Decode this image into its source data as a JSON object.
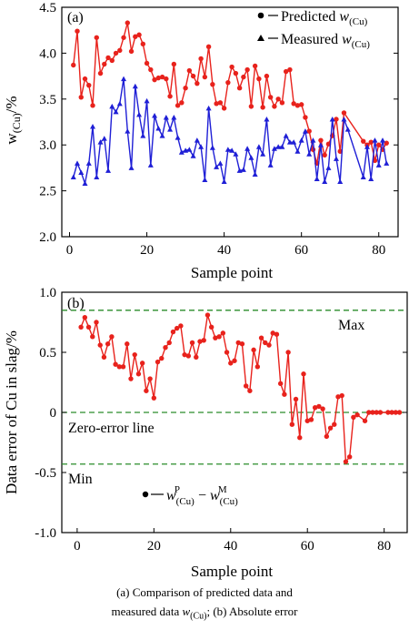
{
  "chart_data": [
    {
      "type": "line",
      "panel_label": "(a)",
      "xlabel": "Sample point",
      "ylabel": "w(Cu)/%",
      "xlim": [
        -2,
        85
      ],
      "ylim": [
        2.0,
        4.5
      ],
      "xticks": [
        "0",
        "20",
        "40",
        "60",
        "80"
      ],
      "yticks": [
        "2.0",
        "2.5",
        "3.0",
        "3.5",
        "4.0",
        "4.5"
      ],
      "legend": {
        "placement": "top-right",
        "entries": [
          "Predicted w(Cu)",
          "Measured w(Cu)"
        ]
      },
      "series": [
        {
          "name": "Predicted w(Cu)",
          "color": "#e8221c",
          "marker": "circle",
          "x": [
            1,
            2,
            3,
            4,
            5,
            6,
            7,
            8,
            9,
            10,
            11,
            12,
            13,
            14,
            15,
            16,
            17,
            18,
            19,
            20,
            21,
            22,
            23,
            24,
            25,
            26,
            27,
            28,
            29,
            30,
            31,
            32,
            33,
            34,
            35,
            36,
            37,
            38,
            39,
            40,
            41,
            42,
            43,
            44,
            45,
            46,
            47,
            48,
            49,
            50,
            51,
            52,
            53,
            54,
            55,
            56,
            57,
            58,
            59,
            60,
            61,
            62,
            63,
            64,
            65,
            66,
            67,
            68,
            69,
            70,
            71,
            76,
            77,
            78,
            79,
            80,
            81,
            82
          ],
          "y": [
            3.87,
            4.24,
            3.52,
            3.72,
            3.65,
            3.43,
            4.17,
            3.78,
            3.88,
            3.95,
            3.92,
            4.0,
            4.03,
            4.17,
            4.33,
            4.02,
            4.18,
            4.2,
            4.1,
            3.89,
            3.82,
            3.71,
            3.73,
            3.74,
            3.72,
            3.53,
            3.88,
            3.43,
            3.46,
            3.62,
            3.81,
            3.75,
            3.67,
            3.94,
            3.74,
            4.07,
            3.66,
            3.45,
            3.46,
            3.4,
            3.68,
            3.85,
            3.78,
            3.62,
            3.74,
            3.82,
            3.42,
            3.86,
            3.72,
            3.41,
            3.75,
            3.52,
            3.42,
            3.5,
            3.46,
            3.8,
            3.82,
            3.45,
            3.43,
            3.44,
            3.3,
            3.15,
            2.95,
            2.8,
            3.05,
            2.89,
            3.01,
            3.1,
            3.28,
            2.93,
            3.35,
            3.04,
            3.0,
            3.03,
            2.83,
            3.0,
            2.95,
            3.02
          ]
        },
        {
          "name": "Measured w(Cu)",
          "color": "#1f1fd6",
          "marker": "triangle",
          "x": [
            1,
            2,
            3,
            4,
            5,
            6,
            7,
            8,
            9,
            10,
            11,
            12,
            13,
            14,
            15,
            16,
            17,
            18,
            19,
            20,
            21,
            22,
            23,
            24,
            25,
            26,
            27,
            28,
            29,
            30,
            31,
            32,
            33,
            34,
            35,
            36,
            37,
            38,
            39,
            40,
            41,
            42,
            43,
            44,
            45,
            46,
            47,
            48,
            49,
            50,
            51,
            52,
            53,
            54,
            55,
            56,
            57,
            58,
            59,
            60,
            61,
            62,
            63,
            64,
            65,
            66,
            67,
            68,
            69,
            70,
            71,
            72,
            76,
            77,
            78,
            79,
            80,
            81,
            82
          ],
          "y": [
            2.65,
            2.8,
            2.7,
            2.58,
            2.8,
            3.2,
            2.65,
            3.03,
            3.07,
            2.72,
            3.42,
            3.36,
            3.45,
            3.72,
            3.15,
            2.75,
            3.64,
            3.33,
            3.1,
            3.48,
            2.78,
            3.32,
            3.18,
            3.1,
            3.3,
            3.17,
            3.3,
            3.08,
            2.92,
            2.94,
            2.95,
            2.88,
            3.05,
            2.98,
            2.62,
            3.4,
            2.97,
            2.76,
            2.8,
            2.6,
            2.95,
            2.94,
            2.9,
            2.72,
            2.73,
            2.96,
            2.86,
            2.68,
            2.98,
            2.9,
            3.28,
            2.78,
            2.96,
            2.98,
            2.98,
            3.1,
            3.03,
            3.03,
            2.93,
            3.05,
            3.15,
            2.9,
            3.05,
            2.63,
            3.0,
            2.6,
            2.75,
            3.28,
            2.85,
            2.6,
            3.28,
            3.17,
            2.65,
            2.98,
            2.63,
            3.05,
            2.78,
            3.05,
            2.8
          ]
        }
      ]
    },
    {
      "type": "line",
      "panel_label": "(b)",
      "xlabel": "Sample point",
      "ylabel": "Data error of Cu in slag/%",
      "xlim": [
        -4,
        86
      ],
      "ylim": [
        -1.0,
        1.0
      ],
      "xticks": [
        "0",
        "20",
        "40",
        "60",
        "80"
      ],
      "yticks": [
        "1.0",
        "0.5",
        "0",
        "-0.5",
        "-1.0"
      ],
      "legend": {
        "placement": "lower-left",
        "entries": [
          "w(Cu)P − w(Cu)M"
        ]
      },
      "reference_lines": [
        {
          "y": 0.85,
          "label": "Max"
        },
        {
          "y": 0.0,
          "label": "Zero-error line"
        },
        {
          "y": -0.43,
          "label": "Min"
        }
      ],
      "series": [
        {
          "name": "w(Cu)P − w(Cu)M",
          "color": "#e8221c",
          "marker": "circle",
          "x": [
            1,
            2,
            3,
            4,
            5,
            6,
            7,
            8,
            9,
            10,
            11,
            12,
            13,
            14,
            15,
            16,
            17,
            18,
            19,
            20,
            21,
            22,
            23,
            24,
            25,
            26,
            27,
            28,
            29,
            30,
            31,
            32,
            33,
            34,
            35,
            36,
            37,
            38,
            39,
            40,
            41,
            42,
            43,
            44,
            45,
            46,
            47,
            48,
            49,
            50,
            51,
            52,
            53,
            54,
            55,
            56,
            57,
            58,
            59,
            60,
            61,
            62,
            63,
            64,
            65,
            66,
            67,
            68,
            69,
            70,
            71,
            72,
            73,
            75,
            76,
            77,
            78,
            79,
            81,
            82,
            83,
            84
          ],
          "y": [
            0.71,
            0.79,
            0.71,
            0.63,
            0.75,
            0.56,
            0.46,
            0.57,
            0.63,
            0.4,
            0.38,
            0.38,
            0.57,
            0.28,
            0.48,
            0.32,
            0.41,
            0.18,
            0.28,
            0.12,
            0.42,
            0.45,
            0.54,
            0.58,
            0.67,
            0.7,
            0.72,
            0.48,
            0.47,
            0.58,
            0.46,
            0.59,
            0.6,
            0.81,
            0.71,
            0.62,
            0.63,
            0.66,
            0.5,
            0.41,
            0.43,
            0.58,
            0.57,
            0.22,
            0.18,
            0.52,
            0.38,
            0.62,
            0.58,
            0.56,
            0.66,
            0.65,
            0.24,
            0.15,
            0.5,
            -0.1,
            0.11,
            -0.21,
            0.32,
            -0.07,
            -0.06,
            0.04,
            0.05,
            0.03,
            -0.2,
            -0.13,
            -0.1,
            0.13,
            0.14,
            -0.41,
            -0.37,
            -0.04,
            -0.02,
            -0.07,
            0.0,
            0.0,
            0.0,
            0.0,
            0.0,
            0.0,
            0.0,
            0.0
          ]
        }
      ]
    }
  ],
  "caption": {
    "line1": "(a)  Comparison  of  predicted  data  and",
    "line2": "measured data w(Cu); (b) Absolute error"
  }
}
